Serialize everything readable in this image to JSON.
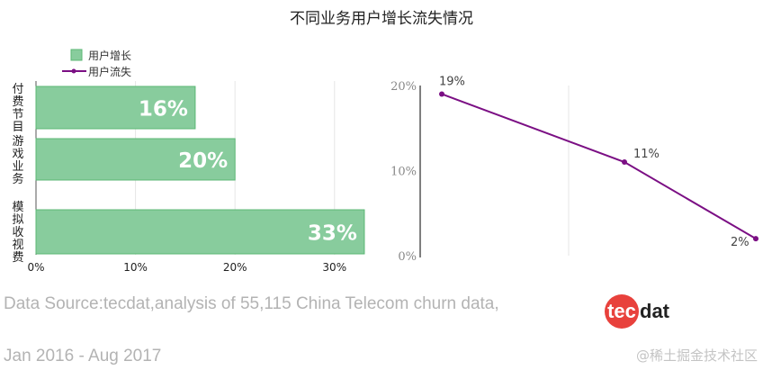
{
  "title": "不同业务用户增长流失情况",
  "legend": {
    "growth": "用户增长",
    "churn": "用户流失"
  },
  "colors": {
    "bar_fill": "#88cc9d",
    "bar_stroke": "#5bb774",
    "line": "#7b0f84",
    "axis": "#555555",
    "grid": "#e6e6e6"
  },
  "source": {
    "line1": "Data Source:tecdat,analysis of 55,115 China Telecom churn data,",
    "line2": "Jan 2016 - Aug 2017"
  },
  "logo": {
    "circle_text": "tec",
    "rest_text": "dat"
  },
  "watermark": "@稀土掘金技术社区",
  "chart_data": [
    {
      "type": "bar",
      "orientation": "horizontal",
      "series": [
        {
          "name": "用户增长",
          "values": [
            16,
            20,
            33
          ]
        }
      ],
      "categories": [
        "付费节目",
        "游戏业务",
        "模拟收视费"
      ],
      "data_labels": [
        "16%",
        "20%",
        "33%"
      ],
      "xticks": [
        "0%",
        "10%",
        "20%",
        "30%"
      ],
      "xlim": [
        0,
        34
      ],
      "grid": true,
      "legend_position": "top-left"
    },
    {
      "type": "line",
      "series": [
        {
          "name": "用户流失",
          "values": [
            19,
            11,
            2
          ]
        }
      ],
      "data_labels": [
        "19%",
        "11%",
        "2%"
      ],
      "yticks": [
        "0%",
        "10%",
        "20%"
      ],
      "ylim": [
        0,
        20
      ],
      "grid": true
    }
  ]
}
